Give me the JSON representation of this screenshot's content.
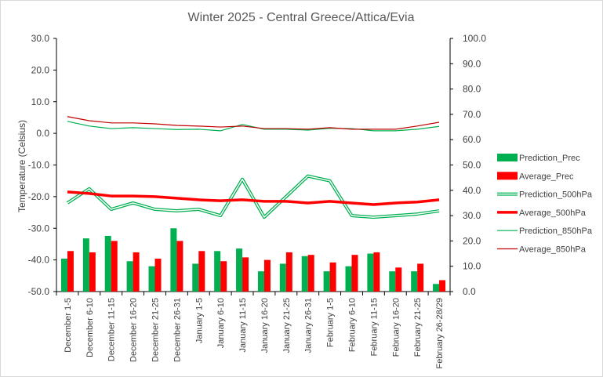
{
  "chart_data": {
    "type": "bar+line",
    "title": "Winter 2025 - Central Greece/Attica/Evia",
    "ylabel": "Temperature (Celsius)",
    "ylim_left": [
      -50,
      30
    ],
    "ylim_right": [
      0,
      100
    ],
    "left_ticks": [
      "30.0",
      "20.0",
      "10.0",
      "0.0",
      "-10.0",
      "-20.0",
      "-30.0",
      "-40.0",
      "-50.0"
    ],
    "right_ticks": [
      "100.0",
      "90.0",
      "80.0",
      "70.0",
      "60.0",
      "50.0",
      "40.0",
      "30.0",
      "20.0",
      "10.0",
      "0.0"
    ],
    "grid": false,
    "legend_position": "right",
    "categories": [
      "December 1-5",
      "December 6-10",
      "December 11-15",
      "December 16-20",
      "December 21-25",
      "December 26-31",
      "January 1-5",
      "January 6-10",
      "January 11-15",
      "January 16-20",
      "January 21-25",
      "January 26-31",
      "February 1-5",
      "February 6-10",
      "February 11-15",
      "February 16-20",
      "February 21-25",
      "February 26-28/29"
    ],
    "series": [
      {
        "name": "Prediction_Prec",
        "kind": "bar",
        "axis": "right",
        "color": "#00b050",
        "values": [
          13,
          21,
          22,
          12,
          10,
          25,
          11,
          16,
          17,
          8,
          11,
          14,
          8,
          10,
          15,
          8,
          8,
          3
        ]
      },
      {
        "name": "Average_Prec",
        "kind": "bar",
        "axis": "right",
        "color": "#ff0000",
        "values": [
          16,
          15.5,
          20,
          15.5,
          13,
          20,
          16,
          12,
          13.5,
          12.5,
          15.5,
          14.5,
          11.5,
          14.5,
          15.5,
          9.5,
          11,
          4.5
        ]
      },
      {
        "name": "Prediction_500hPa",
        "kind": "double-line",
        "axis": "left",
        "color": "#00b050",
        "values": [
          -22,
          -17.5,
          -24,
          -22,
          -24,
          -24.5,
          -24,
          -26,
          -14.5,
          -26.5,
          -20,
          -13.5,
          -15,
          -26,
          -26.5,
          -26,
          -25.5,
          -24.5
        ]
      },
      {
        "name": "Average_500hPa",
        "kind": "thick-line",
        "axis": "left",
        "color": "#ff0000",
        "values": [
          -18.5,
          -19,
          -19.8,
          -19.8,
          -20,
          -20.5,
          -21,
          -21.3,
          -21,
          -21.5,
          -21.5,
          -22,
          -21.5,
          -22,
          -22.5,
          -22,
          -21.7,
          -21
        ]
      },
      {
        "name": "Prediction_850hPa",
        "kind": "line",
        "axis": "left",
        "color": "#00b050",
        "values": [
          3.8,
          2.3,
          1.5,
          1.8,
          1.5,
          1.2,
          1.3,
          0.8,
          2.8,
          1.3,
          1.3,
          1.0,
          1.6,
          1.5,
          0.8,
          0.8,
          1.3,
          2.2
        ]
      },
      {
        "name": "Average_850hPa",
        "kind": "line",
        "axis": "left",
        "color": "#c00000",
        "values": [
          5.3,
          4.0,
          3.3,
          3.3,
          3.0,
          2.5,
          2.3,
          2.0,
          2.3,
          1.5,
          1.5,
          1.3,
          1.8,
          1.3,
          1.3,
          1.3,
          2.3,
          3.5
        ]
      }
    ]
  }
}
